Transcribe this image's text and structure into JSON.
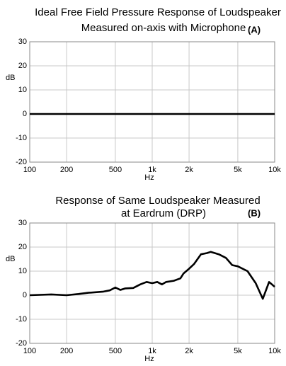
{
  "chart_data": [
    {
      "type": "line",
      "title": [
        "Ideal Free Field Pressure Response of Loudspeaker",
        "Measured on-axis with Microphone"
      ],
      "annotation": "(A)",
      "ylabel": "dB",
      "xlabel": "Hz",
      "x": [
        100,
        10000
      ],
      "values": [
        0,
        0
      ],
      "color": "#000000",
      "xscale": "log",
      "grid": true,
      "xlim": [
        100,
        10000
      ],
      "xticks": [
        100,
        200,
        500,
        {
          "value": 1000,
          "label": "1k"
        },
        {
          "value": 2000,
          "label": "2k"
        },
        {
          "value": 5000,
          "label": "5k"
        },
        {
          "value": 10000,
          "label": "10k"
        }
      ],
      "ylim": [
        -20,
        30
      ],
      "yticks": [
        -20,
        -10,
        0,
        10,
        20,
        30
      ]
    },
    {
      "type": "line",
      "title": [
        "Response of Same Loudspeaker Measured",
        "at Eardrum (DRP)"
      ],
      "annotation": "(B)",
      "ylabel": "dB",
      "xlabel": "Hz",
      "x": [
        100,
        150,
        200,
        250,
        300,
        400,
        450,
        500,
        550,
        600,
        700,
        800,
        900,
        1000,
        1100,
        1200,
        1300,
        1500,
        1700,
        1800,
        2000,
        2200,
        2500,
        2800,
        3000,
        3500,
        4000,
        4500,
        5000,
        6000,
        7000,
        8000,
        9000,
        10000
      ],
      "values": [
        0,
        0.3,
        0,
        0.5,
        1,
        1.5,
        2,
        3.2,
        2.2,
        2.8,
        3,
        4.5,
        5.5,
        5,
        5.5,
        4.5,
        5.5,
        6,
        7,
        9,
        11,
        13,
        17,
        17.5,
        18,
        17,
        15.5,
        12.5,
        12,
        10,
        5,
        -1.5,
        5.5,
        3.5
      ],
      "color": "#000000",
      "xscale": "log",
      "grid": true,
      "xlim": [
        100,
        10000
      ],
      "xticks": [
        100,
        200,
        500,
        {
          "value": 1000,
          "label": "1k"
        },
        {
          "value": 2000,
          "label": "2k"
        },
        {
          "value": 5000,
          "label": "5k"
        },
        {
          "value": 10000,
          "label": "10k"
        }
      ],
      "ylim": [
        -20,
        30
      ],
      "yticks": [
        -20,
        -10,
        0,
        10,
        20,
        30
      ]
    }
  ]
}
